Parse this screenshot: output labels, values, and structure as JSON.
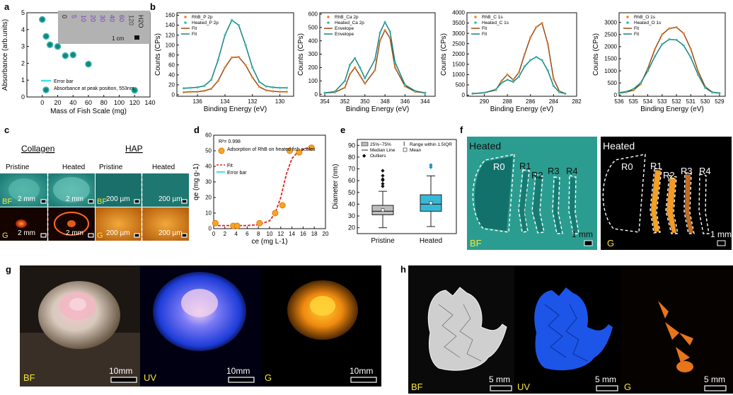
{
  "panel_letters": [
    "a",
    "b",
    "c",
    "d",
    "e",
    "f",
    "g",
    "h"
  ],
  "colors": {
    "teal": "#14857f",
    "teal_light": "#3ab8b0",
    "orange": "#e8872a",
    "brown": "#9a4a14",
    "red": "#e02020",
    "cyan": "#3fe0f0",
    "box_gray": "#bdbdbd",
    "box_blue": "#38b8d6"
  },
  "panel_a": {
    "ylabel": "Absorbance (arb.units)",
    "xlabel": "Mass of Fish Scale (mg)",
    "legend": [
      "Error bar",
      "Absorbance at peak position, 553nm"
    ],
    "inset_labels": [
      "0",
      "5",
      "10",
      "20",
      "30",
      "40",
      "60",
      "120",
      "H2O"
    ],
    "inset_scale": "1 cm"
  },
  "panel_b": {
    "plots": [
      {
        "ylabel": "Counts (CPs)",
        "xlabel": "Binding Energy (eV)",
        "legend": [
          "RhB_P 2p",
          "Heated_P 2p",
          "Fit",
          "Fit"
        ]
      },
      {
        "ylabel": "Counts (CPs)",
        "xlabel": "Binding Energy (eV)",
        "legend": [
          "RhB_Ca 2p",
          "Heated_Ca 2p",
          "Envelope",
          "Envelope"
        ]
      },
      {
        "ylabel": "Counts (CPs)",
        "xlabel": "Binding Energy (eV)",
        "legend": [
          "RhB_C 1s",
          "Heated_C 1s",
          "Fit",
          "Fit"
        ]
      },
      {
        "ylabel": "Counts (CPs)",
        "xlabel": "Binding Energy (eV)",
        "legend": [
          "RhB_O 1s",
          "Heated_O 1s",
          "Fit",
          "Fit"
        ]
      }
    ]
  },
  "panel_c": {
    "groups": [
      "Collagen",
      "HAP"
    ],
    "cols": [
      "Pristine",
      "Heated",
      "Pristine",
      "Heated"
    ],
    "rows": [
      "BF",
      "G"
    ],
    "scales": [
      "2 mm",
      "2 mm",
      "200 µm",
      "200 µm"
    ]
  },
  "panel_d": {
    "r2": "R²= 0.998",
    "legend": [
      "Adsorption of RhB on heated fish scales",
      "Fit",
      "Error bar"
    ],
    "xlabel": "ce (mg L-1)",
    "ylabel": "qe (mg g-1)"
  },
  "panel_e": {
    "ylabel": "Diameter (nm)",
    "legend": [
      "25%~75%",
      "Median Line",
      "Outliers",
      "Range within 1.5IQR",
      "Mean"
    ]
  },
  "panel_f": {
    "left_title": "Heated",
    "right_title": "Heated",
    "regions": [
      "R0",
      "R1",
      "R2",
      "R3",
      "R4"
    ],
    "left_mode": "BF",
    "right_mode": "G",
    "scale": "1 mm"
  },
  "panel_g": {
    "modes": [
      "BF",
      "UV",
      "G"
    ],
    "scale": "10mm"
  },
  "panel_h": {
    "modes": [
      "BF",
      "UV",
      "G"
    ],
    "scale": "5 mm"
  },
  "chart_data": [
    {
      "type": "scatter",
      "id": "a",
      "xlabel": "Mass of Fish Scale (mg)",
      "ylabel": "Absorbance (arb.units)",
      "xlim": [
        -20,
        140
      ],
      "ylim": [
        0,
        5
      ],
      "xticks": [
        0,
        20,
        40,
        60,
        80,
        100,
        120,
        140
      ],
      "yticks": [
        0,
        1,
        2,
        3,
        4,
        5
      ],
      "series": [
        {
          "name": "Absorbance at peak position, 553nm",
          "x": [
            0,
            5,
            10,
            20,
            30,
            40,
            60,
            120
          ],
          "y": [
            4.6,
            3.6,
            3.1,
            3.0,
            2.45,
            2.5,
            1.95,
            0.4
          ]
        }
      ]
    },
    {
      "type": "line",
      "id": "b1",
      "xlabel": "Binding Energy (eV)",
      "ylabel": "Counts (CPs)",
      "xlim": [
        137.5,
        129
      ],
      "ylim": [
        -3,
        165
      ],
      "xticks": [
        136,
        134,
        132,
        130
      ],
      "yticks": [
        0,
        20,
        40,
        60,
        80,
        100,
        120,
        140,
        160
      ],
      "x": [
        137,
        136.5,
        136,
        135.5,
        135,
        134.5,
        134,
        133.5,
        133,
        132.5,
        132,
        131.5,
        131,
        130.5,
        130,
        129.5
      ],
      "series": [
        {
          "name": "RhB_P 2p",
          "values": [
            5,
            6,
            6,
            8,
            12,
            28,
            55,
            75,
            76,
            60,
            35,
            16,
            9,
            7,
            6,
            6
          ]
        },
        {
          "name": "Heated_P 2p",
          "values": [
            13,
            14,
            15,
            18,
            30,
            70,
            120,
            150,
            140,
            100,
            55,
            26,
            17,
            15,
            14,
            14
          ]
        }
      ]
    },
    {
      "type": "line",
      "id": "b2",
      "xlabel": "Binding Energy (eV)",
      "ylabel": "Counts (CPs)",
      "xlim": [
        354.5,
        343
      ],
      "ylim": [
        -15,
        610
      ],
      "xticks": [
        354,
        352,
        350,
        348,
        346,
        344
      ],
      "yticks": [
        0,
        100,
        200,
        300,
        400,
        500,
        600
      ],
      "x": [
        354,
        353,
        352,
        351.5,
        351,
        350.5,
        350,
        349,
        348.5,
        348,
        347.5,
        347,
        346,
        345,
        344
      ],
      "series": [
        {
          "name": "RhB_Ca 2p",
          "values": [
            10,
            15,
            50,
            150,
            200,
            140,
            80,
            180,
            400,
            480,
            420,
            200,
            60,
            20,
            10
          ]
        },
        {
          "name": "Heated_Ca 2p",
          "values": [
            10,
            20,
            100,
            220,
            270,
            200,
            120,
            260,
            460,
            540,
            470,
            240,
            70,
            25,
            10
          ]
        }
      ]
    },
    {
      "type": "line",
      "id": "b3",
      "xlabel": "Binding Energy (eV)",
      "ylabel": "Counts (CPs)",
      "xlim": [
        291.5,
        282
      ],
      "ylim": [
        -50,
        4000
      ],
      "xticks": [
        290,
        288,
        286,
        284,
        282
      ],
      "yticks": [
        0,
        500,
        1000,
        1500,
        2000,
        2500,
        3000,
        3500,
        4000
      ],
      "x": [
        291,
        290,
        289,
        288.5,
        288,
        287.5,
        287,
        286.5,
        286,
        285.5,
        285,
        284.5,
        284,
        283.5,
        283
      ],
      "series": [
        {
          "name": "RhB_C 1s",
          "values": [
            80,
            120,
            250,
            700,
            1000,
            750,
            1100,
            2000,
            2800,
            3300,
            3500,
            2500,
            800,
            200,
            80
          ]
        },
        {
          "name": "Heated_C 1s",
          "values": [
            80,
            120,
            280,
            600,
            750,
            650,
            900,
            1400,
            1700,
            1850,
            1700,
            1200,
            450,
            150,
            80
          ]
        }
      ]
    },
    {
      "type": "line",
      "id": "b4",
      "xlabel": "Binding Energy (eV)",
      "ylabel": "Counts (CPs)",
      "xlim": [
        536,
        528.6
      ],
      "ylim": [
        -50,
        3400
      ],
      "xticks": [
        536,
        535,
        534,
        533,
        532,
        531,
        530,
        529
      ],
      "yticks": [
        0,
        500,
        1000,
        1500,
        2000,
        2500,
        3000
      ],
      "x": [
        536,
        535.5,
        535,
        534.5,
        534,
        533.5,
        533,
        532.5,
        532,
        531.5,
        531,
        530.5,
        530,
        529.5,
        529
      ],
      "series": [
        {
          "name": "RhB_O 1s",
          "values": [
            80,
            120,
            200,
            450,
            1100,
            1900,
            2500,
            2750,
            2800,
            2550,
            1900,
            1000,
            350,
            120,
            80
          ]
        },
        {
          "name": "Heated_O 1s",
          "values": [
            100,
            140,
            250,
            500,
            1000,
            1600,
            2100,
            2300,
            2280,
            2050,
            1550,
            850,
            300,
            110,
            80
          ]
        }
      ]
    },
    {
      "type": "scatter",
      "id": "d",
      "xlabel": "ce (mg L-1)",
      "ylabel": "qe (mg g-1)",
      "xlim": [
        0,
        20
      ],
      "ylim": [
        0,
        60
      ],
      "xticks": [
        0,
        2,
        4,
        6,
        8,
        10,
        12,
        14,
        16,
        18,
        20
      ],
      "yticks": [
        0,
        10,
        20,
        30,
        40,
        50,
        60
      ],
      "series": [
        {
          "name": "Adsorption of RhB on heated fish scales",
          "x": [
            0.3,
            3.5,
            4.2,
            8.2,
            11,
            12.3,
            13.6,
            15.3,
            17.5
          ],
          "y": [
            3.5,
            1.8,
            1.8,
            3.5,
            10,
            15,
            50,
            49,
            52
          ]
        },
        {
          "name": "Fit",
          "x": [
            0,
            2,
            4,
            6,
            8,
            10,
            11,
            12,
            13,
            14,
            15,
            16,
            17,
            18
          ],
          "y": [
            2,
            2,
            2,
            2,
            2.5,
            5,
            10,
            20,
            35,
            45,
            49,
            51,
            52,
            52.5
          ]
        }
      ]
    },
    {
      "type": "box",
      "id": "e",
      "ylabel": "Diameter (nm)",
      "ylim": [
        15,
        95
      ],
      "yticks": [
        20,
        30,
        40,
        50,
        60,
        70,
        80,
        90
      ],
      "categories": [
        "Pristine",
        "Heated"
      ],
      "boxes": [
        {
          "q1": 31,
          "median": 34,
          "q3": 39,
          "whisker_low": 20,
          "whisker_high": 51,
          "mean": 35,
          "outliers": [
            56,
            58,
            61,
            62,
            65,
            69
          ]
        },
        {
          "q1": 34,
          "median": 40,
          "q3": 48,
          "whisker_low": 21,
          "whisker_high": 64,
          "mean": 41,
          "outliers": [
            72,
            74
          ]
        }
      ]
    }
  ]
}
